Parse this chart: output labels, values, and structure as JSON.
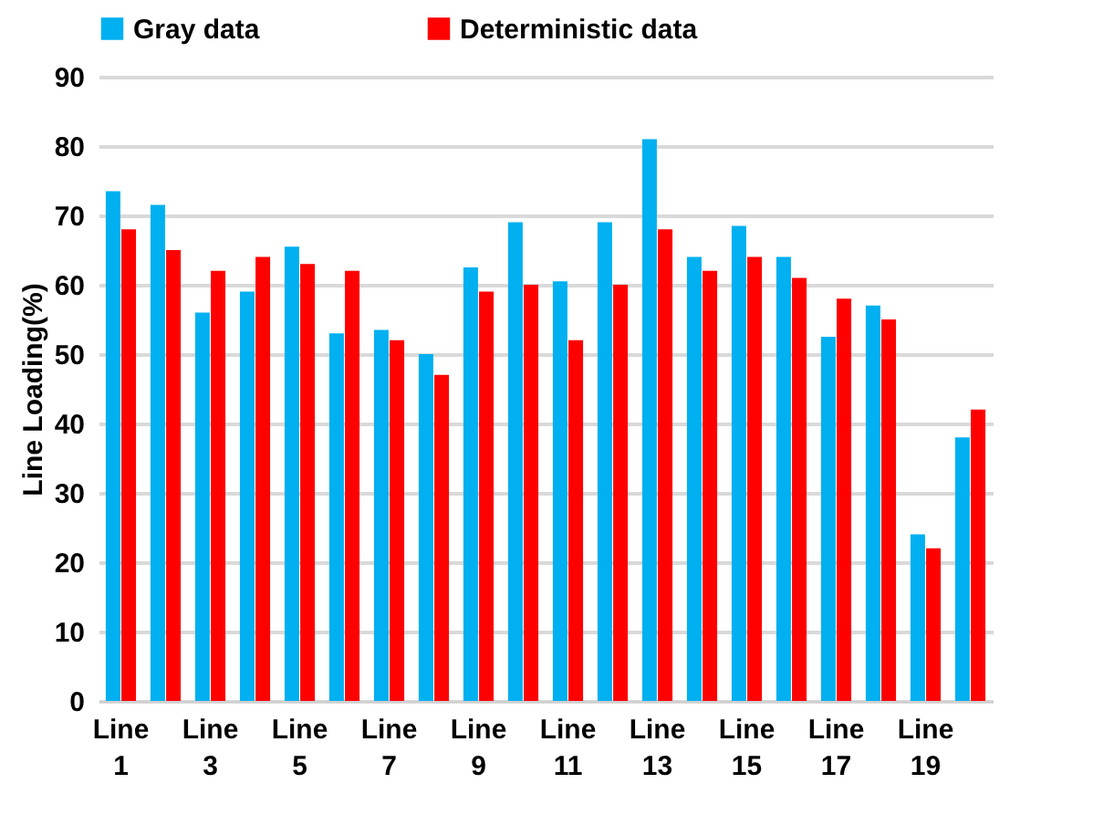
{
  "chart_data": {
    "type": "bar",
    "ylabel": "Line Loading(%)",
    "categories": [
      "Line 1",
      null,
      "Line 3",
      null,
      "Line 5",
      null,
      "Line 7",
      null,
      "Line 9",
      null,
      "Line 11",
      null,
      "Line 13",
      null,
      "Line 15",
      null,
      "Line 17",
      null,
      "Line 19",
      null
    ],
    "series": [
      {
        "name": "Gray data",
        "color": "#00b0f0",
        "values": [
          73.5,
          71.5,
          56,
          59,
          65.5,
          53,
          53.5,
          50,
          62.5,
          69,
          60.5,
          69,
          81,
          64,
          68.5,
          64,
          52.5,
          57,
          24,
          38
        ]
      },
      {
        "name": "Deterministic data",
        "color": "#ff0000",
        "values": [
          68,
          65,
          62,
          64,
          63,
          62,
          52,
          47,
          59,
          60,
          52,
          60,
          68,
          62,
          64,
          61,
          58,
          55,
          22,
          42
        ]
      }
    ],
    "ylim": [
      0,
      90
    ],
    "yticks": [
      0,
      10,
      20,
      30,
      40,
      50,
      60,
      70,
      80,
      90
    ],
    "grid": "y",
    "legend": "top"
  }
}
